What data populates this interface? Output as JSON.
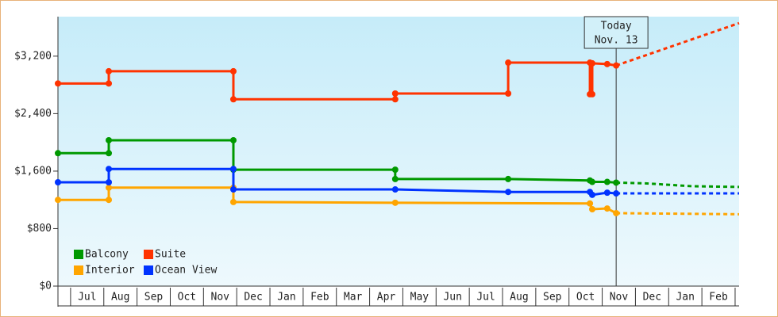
{
  "chart_data": {
    "type": "line",
    "xlim": [
      -0.38,
      20.12
    ],
    "categories": [
      "Jul",
      "Aug",
      "Sep",
      "Oct",
      "Nov",
      "Dec",
      "Jan",
      "Feb",
      "Mar",
      "Apr",
      "May",
      "Jun",
      "Jul",
      "Aug",
      "Sep",
      "Oct",
      "Nov",
      "Dec",
      "Jan",
      "Feb"
    ],
    "ylim": [
      0,
      3750
    ],
    "yticks": [
      {
        "value": 0,
        "label": "$0"
      },
      {
        "value": 800,
        "label": "$800"
      },
      {
        "value": 1600,
        "label": "$1,600"
      },
      {
        "value": 2400,
        "label": "$2,400"
      },
      {
        "value": 3200,
        "label": "$3,200"
      }
    ],
    "today": {
      "x": 16.42,
      "label": "Today",
      "date": "Nov. 13"
    },
    "series": [
      {
        "name": "Balcony",
        "color": "#009900",
        "x": [
          -0.38,
          1.15,
          1.15,
          4.9,
          4.9,
          9.77,
          9.77,
          13.17,
          15.63,
          15.7,
          16.15,
          16.42
        ],
        "values": [
          1850,
          1850,
          2030,
          2030,
          1620,
          1620,
          1490,
          1490,
          1470,
          1450,
          1450,
          1440
        ],
        "projected_x": [
          16.42,
          17.3,
          18.7,
          20.12
        ],
        "projected_values": [
          1440,
          1430,
          1390,
          1380
        ]
      },
      {
        "name": "Suite",
        "color": "#ff3300",
        "x": [
          -0.38,
          1.15,
          1.15,
          4.9,
          4.9,
          9.77,
          9.77,
          13.17,
          13.17,
          15.63,
          15.63,
          15.7,
          15.7,
          16.15,
          16.42
        ],
        "values": [
          2820,
          2820,
          2990,
          2990,
          2600,
          2600,
          2680,
          2680,
          3110,
          3110,
          2670,
          2670,
          3100,
          3090,
          3070
        ],
        "projected_x": [
          16.42,
          20.12
        ],
        "projected_values": [
          3070,
          3660
        ]
      },
      {
        "name": "Interior",
        "color": "#ffa500",
        "x": [
          -0.38,
          1.15,
          1.15,
          4.9,
          4.9,
          9.77,
          15.63,
          15.7,
          16.15,
          16.42
        ],
        "values": [
          1200,
          1200,
          1370,
          1370,
          1170,
          1160,
          1150,
          1070,
          1080,
          1015
        ],
        "projected_x": [
          16.42,
          20.12
        ],
        "projected_values": [
          1015,
          1000
        ]
      },
      {
        "name": "Ocean View",
        "color": "#0033ff",
        "x": [
          -0.38,
          1.15,
          1.15,
          4.9,
          4.9,
          9.77,
          13.17,
          15.63,
          15.7,
          16.15,
          16.42
        ],
        "values": [
          1445,
          1445,
          1630,
          1630,
          1345,
          1345,
          1310,
          1310,
          1270,
          1300,
          1290
        ],
        "projected_x": [
          16.42,
          20.12
        ],
        "projected_values": [
          1290,
          1290
        ]
      }
    ]
  }
}
